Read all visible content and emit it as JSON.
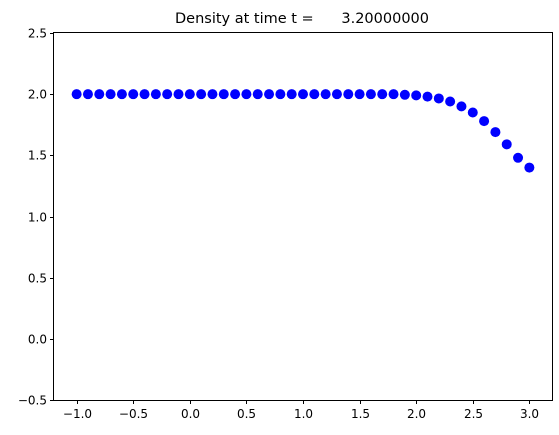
{
  "chart_data": {
    "type": "scatter",
    "title": "Density at time t =      3.20000000",
    "xlabel": "",
    "ylabel": "",
    "xlim": [
      -1.2,
      3.2
    ],
    "ylim": [
      -0.5,
      2.5
    ],
    "x_ticks": [
      "−1.0",
      "−0.5",
      "0.0",
      "0.5",
      "1.0",
      "1.5",
      "2.0",
      "2.5",
      "3.0"
    ],
    "x_tick_values": [
      -1.0,
      -0.5,
      0.0,
      0.5,
      1.0,
      1.5,
      2.0,
      2.5,
      3.0
    ],
    "y_ticks": [
      "−0.5",
      "0.0",
      "0.5",
      "1.0",
      "1.5",
      "2.0",
      "2.5"
    ],
    "y_tick_values": [
      -0.5,
      0.0,
      0.5,
      1.0,
      1.5,
      2.0,
      2.5
    ],
    "grid": false,
    "marker_color": "#0000ff",
    "series": [
      {
        "x": [
          -1.0,
          -0.9,
          -0.8,
          -0.7,
          -0.6,
          -0.5,
          -0.4,
          -0.3,
          -0.2,
          -0.1,
          0.0,
          0.1,
          0.2,
          0.3,
          0.4,
          0.5,
          0.6,
          0.7,
          0.8,
          0.9,
          1.0,
          1.1,
          1.2,
          1.3,
          1.4,
          1.5,
          1.6,
          1.7,
          1.8,
          1.9,
          2.0,
          2.1,
          2.2,
          2.3,
          2.4,
          2.5,
          2.6,
          2.7,
          2.8,
          2.9,
          3.0
        ],
        "y": [
          2.0,
          2.0,
          2.0,
          2.0,
          2.0,
          2.0,
          2.0,
          2.0,
          2.0,
          2.0,
          2.0,
          2.0,
          2.0,
          2.0,
          2.0,
          2.0,
          2.0,
          2.0,
          2.0,
          2.0,
          2.0,
          2.0,
          2.0,
          2.0,
          2.0,
          2.0,
          2.0,
          2.0,
          2.0,
          1.995,
          1.99,
          1.98,
          1.965,
          1.94,
          1.9,
          1.85,
          1.78,
          1.69,
          1.59,
          1.48,
          1.4
        ]
      }
    ]
  }
}
